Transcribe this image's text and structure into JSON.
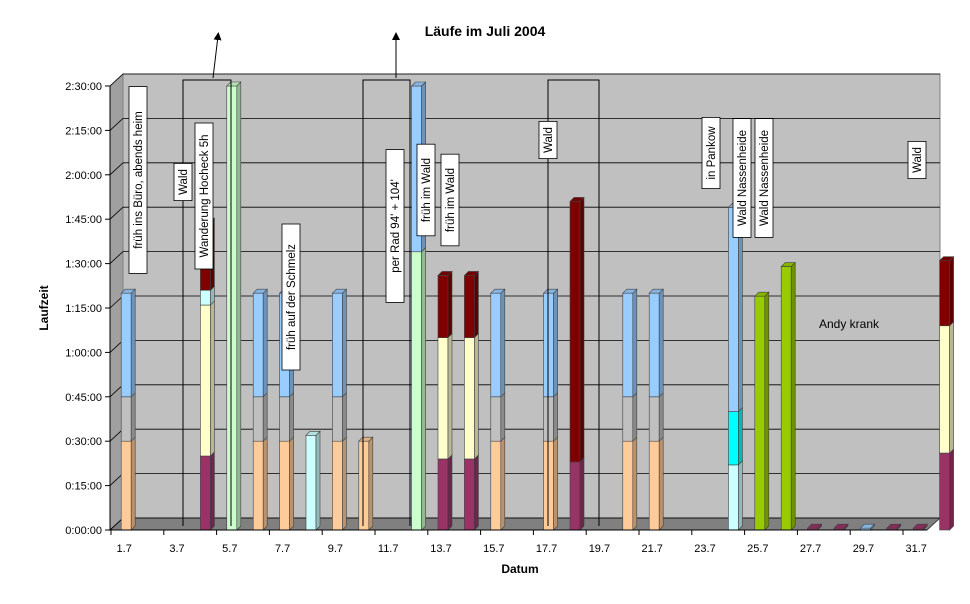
{
  "chart_data": {
    "type": "bar",
    "stacked": true,
    "three_d": true,
    "title": "Läufe im Juli 2004",
    "xlabel": "Datum",
    "ylabel": "Laufzeit",
    "ylim_minutes": [
      0,
      150
    ],
    "y_ticks": [
      {
        "minutes": 0,
        "label": "0:00:00"
      },
      {
        "minutes": 15,
        "label": "0:15:00"
      },
      {
        "minutes": 30,
        "label": "0:30:00"
      },
      {
        "minutes": 45,
        "label": "0:45:00"
      },
      {
        "minutes": 60,
        "label": "1:00:00"
      },
      {
        "minutes": 75,
        "label": "1:15:00"
      },
      {
        "minutes": 90,
        "label": "1:30:00"
      },
      {
        "minutes": 105,
        "label": "1:45:00"
      },
      {
        "minutes": 120,
        "label": "2:00:00"
      },
      {
        "minutes": 135,
        "label": "2:15:00"
      },
      {
        "minutes": 150,
        "label": "2:30:00"
      }
    ],
    "x_tick_labels": [
      "1.7",
      "3.7",
      "5.7",
      "7.7",
      "9.7",
      "11.7",
      "13.7",
      "15.7",
      "17.7",
      "19.7",
      "21.7",
      "23.7",
      "25.7",
      "27.7",
      "29.7",
      "31.7"
    ],
    "grid": true,
    "colors": {
      "plot_bg": "#c0c0c0",
      "peach": "#ffcc99",
      "grey": "#c0c0c0",
      "blue": "#99ccff",
      "plum": "#993366",
      "cream": "#ffffcc",
      "lightcyan": "#ccffff",
      "maroon": "#800000",
      "mint": "#ccffcc",
      "cyan": "#00ffff",
      "lime": "#99cc00"
    },
    "days": [
      {
        "day": 1,
        "segments": [
          [
            "peach",
            30
          ],
          [
            "grey",
            15
          ],
          [
            "blue",
            35
          ]
        ]
      },
      {
        "day": 2,
        "segments": []
      },
      {
        "day": 3,
        "segments": []
      },
      {
        "day": 4,
        "segments": [
          [
            "plum",
            25
          ],
          [
            "cream",
            51
          ],
          [
            "lightcyan",
            5
          ],
          [
            "maroon",
            23
          ]
        ]
      },
      {
        "day": 5,
        "segments": [
          [
            "mint",
            150
          ]
        ],
        "overflow": true
      },
      {
        "day": 6,
        "segments": [
          [
            "peach",
            30
          ],
          [
            "grey",
            15
          ],
          [
            "blue",
            35
          ]
        ]
      },
      {
        "day": 7,
        "segments": [
          [
            "peach",
            30
          ],
          [
            "grey",
            15
          ],
          [
            "blue",
            35
          ]
        ]
      },
      {
        "day": 8,
        "segments": [
          [
            "lightcyan",
            32
          ]
        ]
      },
      {
        "day": 9,
        "segments": [
          [
            "peach",
            30
          ],
          [
            "grey",
            15
          ],
          [
            "blue",
            35
          ]
        ]
      },
      {
        "day": 10,
        "segments": [
          [
            "peach",
            30
          ]
        ]
      },
      {
        "day": 11,
        "segments": []
      },
      {
        "day": 12,
        "segments": [
          [
            "mint",
            94
          ],
          [
            "blue",
            56
          ]
        ],
        "overflow": true
      },
      {
        "day": 13,
        "segments": [
          [
            "plum",
            24
          ],
          [
            "cream",
            41
          ],
          [
            "maroon",
            21
          ]
        ]
      },
      {
        "day": 14,
        "segments": [
          [
            "plum",
            24
          ],
          [
            "cream",
            41
          ],
          [
            "maroon",
            21
          ]
        ]
      },
      {
        "day": 15,
        "segments": [
          [
            "peach",
            30
          ],
          [
            "grey",
            15
          ],
          [
            "blue",
            35
          ]
        ]
      },
      {
        "day": 16,
        "segments": []
      },
      {
        "day": 17,
        "segments": [
          [
            "peach",
            30
          ],
          [
            "grey",
            15
          ],
          [
            "blue",
            35
          ]
        ]
      },
      {
        "day": 18,
        "segments": [
          [
            "plum",
            23
          ],
          [
            "maroon",
            88
          ]
        ]
      },
      {
        "day": 19,
        "segments": []
      },
      {
        "day": 20,
        "segments": [
          [
            "peach",
            30
          ],
          [
            "grey",
            15
          ],
          [
            "blue",
            35
          ]
        ]
      },
      {
        "day": 21,
        "segments": [
          [
            "peach",
            30
          ],
          [
            "grey",
            15
          ],
          [
            "blue",
            35
          ]
        ]
      },
      {
        "day": 22,
        "segments": []
      },
      {
        "day": 23,
        "segments": []
      },
      {
        "day": 24,
        "segments": [
          [
            "lightcyan",
            22
          ],
          [
            "cyan",
            18
          ],
          [
            "blue",
            69
          ]
        ]
      },
      {
        "day": 25,
        "segments": [
          [
            "lime",
            79
          ]
        ]
      },
      {
        "day": 26,
        "segments": [
          [
            "lime",
            89
          ]
        ]
      },
      {
        "day": 27,
        "segments": [
          [
            "plum",
            0.6
          ]
        ]
      },
      {
        "day": 28,
        "segments": [
          [
            "plum",
            0.6
          ]
        ]
      },
      {
        "day": 29,
        "segments": [
          [
            "blue",
            0.6
          ]
        ]
      },
      {
        "day": 30,
        "segments": [
          [
            "plum",
            0.6
          ]
        ]
      },
      {
        "day": 31,
        "segments": [
          [
            "plum",
            0.6
          ]
        ]
      },
      {
        "day": 32,
        "segments": [
          [
            "plum",
            26
          ],
          [
            "cream",
            43
          ],
          [
            "maroon",
            22
          ]
        ]
      }
    ],
    "annotations": [
      {
        "text": "früh ins Büro, abends heim",
        "day": 1,
        "vertical": true
      },
      {
        "text": "Wald",
        "day": 4,
        "vertical": true
      },
      {
        "text": "Wanderung Hocheck 5h",
        "day": 5,
        "vertical": true
      },
      {
        "text": "früh auf der Schmelz",
        "day": 8,
        "vertical": true
      },
      {
        "text": "per Rad    94' + 104'",
        "day": 12,
        "vertical": true
      },
      {
        "text": "früh im Wald",
        "day": 13,
        "vertical": true
      },
      {
        "text": "früh im Wald",
        "day": 14,
        "vertical": true
      },
      {
        "text": "Wald",
        "day": 18,
        "vertical": true
      },
      {
        "text": "in Pankow",
        "day": 24,
        "vertical": true
      },
      {
        "text": "Wald Nassenheide",
        "day": 25,
        "vertical": true
      },
      {
        "text": "Wald Nassenheide",
        "day": 26,
        "vertical": true
      },
      {
        "text": "Andy krank",
        "day": 29,
        "vertical": false
      },
      {
        "text": "Wald",
        "day": 32,
        "vertical": true
      }
    ]
  }
}
